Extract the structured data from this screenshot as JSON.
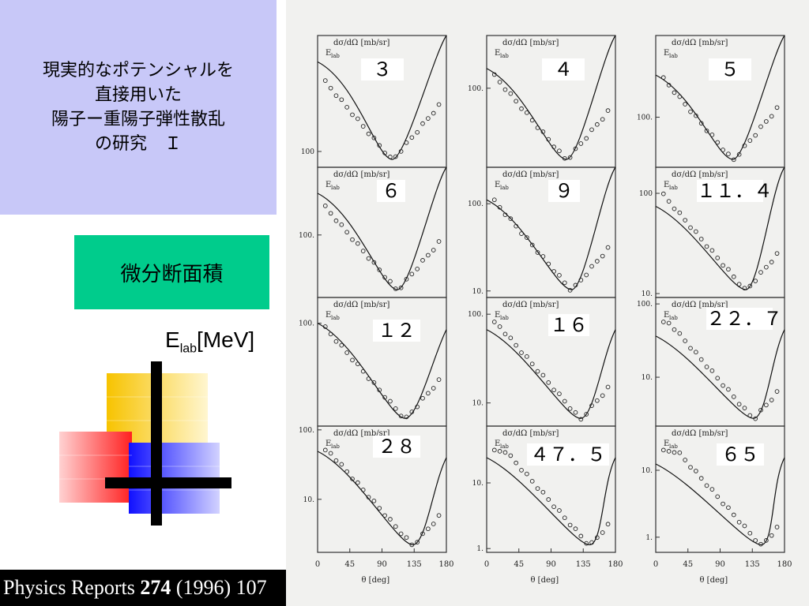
{
  "title": {
    "lines": [
      "現実的なポテンシャルを",
      "直接用いた",
      "陽子ー重陽子弾性散乱",
      "の研究　Ｉ"
    ]
  },
  "section_label": "微分断面積",
  "energy_label": {
    "main": "E",
    "sub": "lab",
    "unit": "[MeV]"
  },
  "reference": {
    "journal": "Physics Reports ",
    "volume": "274",
    "rest": " (1996) 107"
  },
  "figure": {
    "ylabel": "dσ/dΩ [mb/sr]",
    "energy_prefix": "E",
    "energy_sub": "lab",
    "xlabel": "θ [deg]",
    "x_ticks": [
      "0",
      "45",
      "90",
      "135",
      "180"
    ],
    "panels": [
      {
        "label": "３",
        "yticks": [
          "100"
        ]
      },
      {
        "label": "４",
        "yticks": [
          "100."
        ]
      },
      {
        "label": "５",
        "yticks": [
          "100."
        ]
      },
      {
        "label": "６",
        "yticks": [
          "100."
        ]
      },
      {
        "label": "９",
        "yticks": [
          "100.",
          "10."
        ]
      },
      {
        "label": "１１．４",
        "yticks": [
          "100",
          "10."
        ]
      },
      {
        "label": "１２",
        "yticks": [
          "100."
        ]
      },
      {
        "label": "１６",
        "yticks": [
          "100.",
          "10."
        ]
      },
      {
        "label": "２２．７",
        "yticks": [
          "100.",
          "10."
        ]
      },
      {
        "label": "２８",
        "yticks": [
          "100.",
          "10."
        ]
      },
      {
        "label": "４７．５",
        "yticks": [
          "10.",
          "1."
        ]
      },
      {
        "label": "６５",
        "yticks": [
          "10.",
          "1."
        ]
      }
    ]
  }
}
